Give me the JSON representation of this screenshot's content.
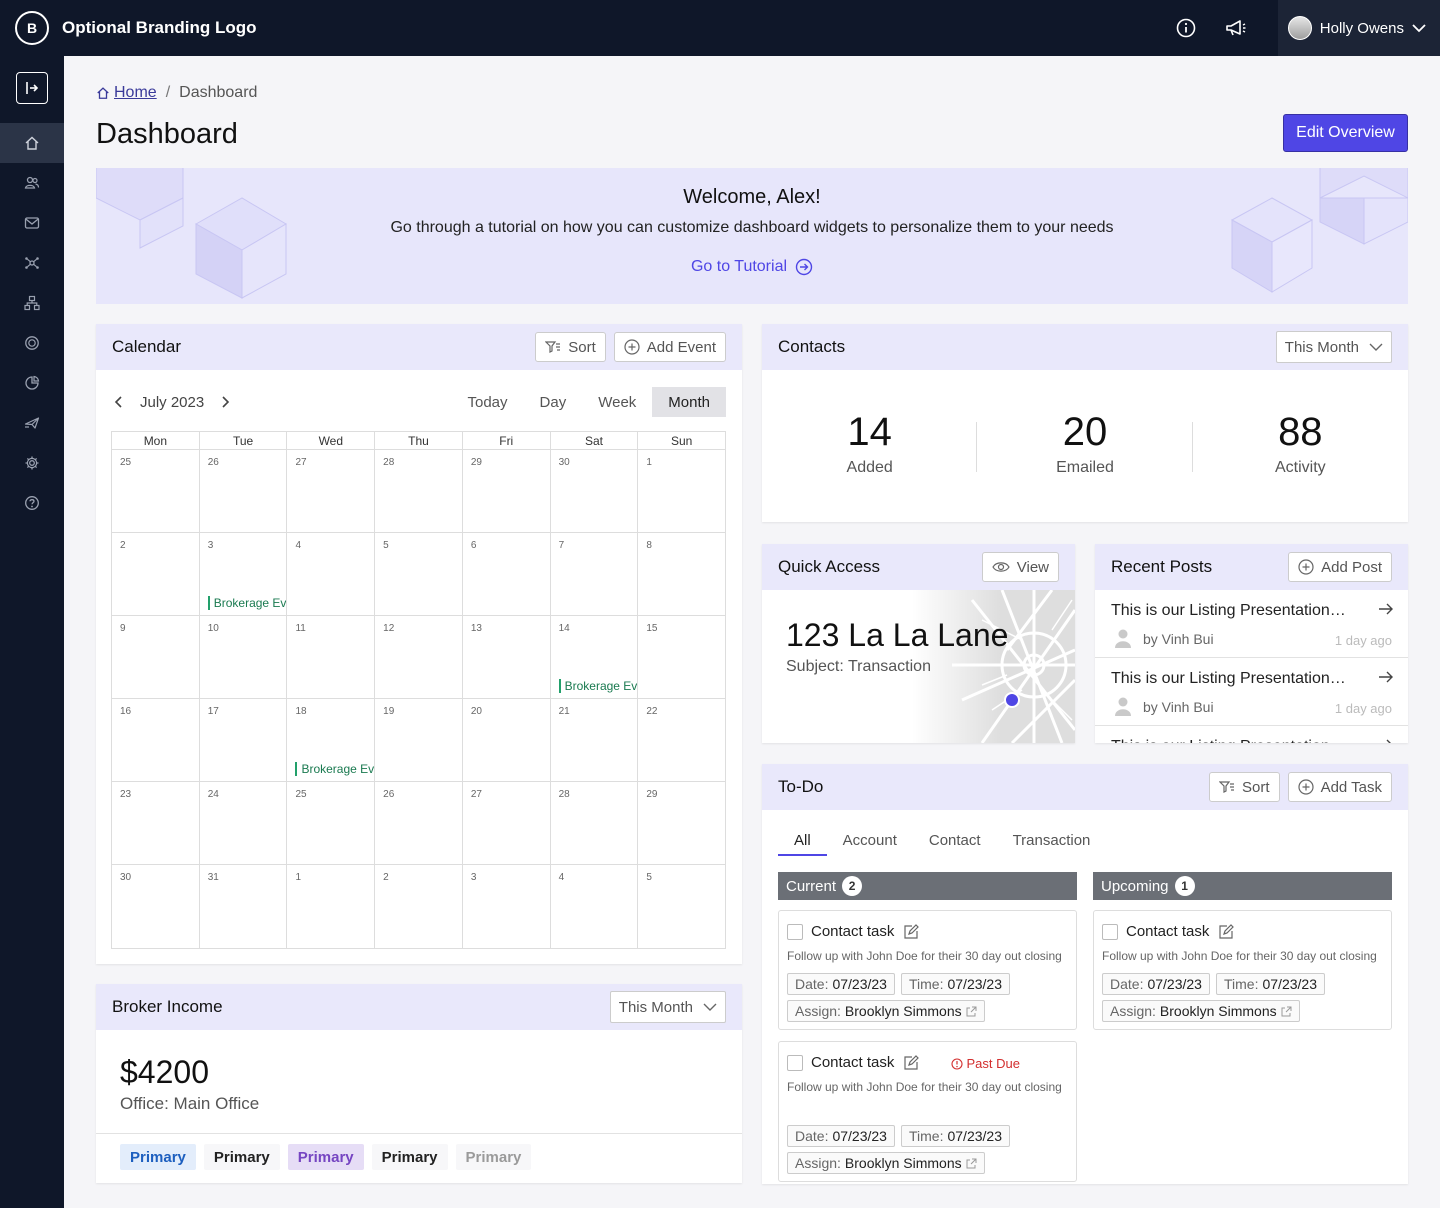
{
  "topbar": {
    "brand": "Optional Branding Logo",
    "brand_mark": "B",
    "user_name": "Holly Owens"
  },
  "breadcrumb": {
    "home": "Home",
    "separator": "/",
    "current": "Dashboard"
  },
  "page": {
    "title": "Dashboard",
    "edit_button": "Edit Overview"
  },
  "welcome": {
    "title": "Welcome, Alex!",
    "description": "Go through a tutorial on how you can customize dashboard widgets to personalize them to your needs",
    "link": "Go to Tutorial"
  },
  "calendar": {
    "title": "Calendar",
    "sort": "Sort",
    "add_event": "Add Event",
    "month": "July 2023",
    "views": [
      "Today",
      "Day",
      "Week",
      "Month"
    ],
    "active_view": "Month",
    "weekdays": [
      "Mon",
      "Tue",
      "Wed",
      "Thu",
      "Fri",
      "Sat",
      "Sun"
    ],
    "weeks": [
      [
        "25",
        "26",
        "27",
        "28",
        "29",
        "30",
        "1"
      ],
      [
        "2",
        "3",
        "4",
        "5",
        "6",
        "7",
        "8"
      ],
      [
        "9",
        "10",
        "11",
        "12",
        "13",
        "14",
        "15"
      ],
      [
        "16",
        "17",
        "18",
        "19",
        "20",
        "21",
        "22"
      ],
      [
        "23",
        "24",
        "25",
        "26",
        "27",
        "28",
        "29"
      ],
      [
        "30",
        "31",
        "1",
        "2",
        "3",
        "4",
        "5"
      ]
    ],
    "events": [
      {
        "week": 1,
        "day": 1,
        "label": "Brokerage Ev"
      },
      {
        "week": 2,
        "day": 5,
        "label": "Brokerage Ev"
      },
      {
        "week": 3,
        "day": 2,
        "label": "Brokerage Ev"
      }
    ]
  },
  "contacts": {
    "title": "Contacts",
    "filter": "This Month",
    "stats": [
      {
        "value": "14",
        "label": "Added"
      },
      {
        "value": "20",
        "label": "Emailed"
      },
      {
        "value": "88",
        "label": "Activity"
      }
    ]
  },
  "quick_access": {
    "title": "Quick Access",
    "view": "View",
    "address": "123 La La Lane",
    "subject": "Subject: Transaction"
  },
  "recent_posts": {
    "title": "Recent Posts",
    "add_post": "Add Post",
    "posts": [
      {
        "title": "This is our Listing Presentation…",
        "author": "by Vinh Bui",
        "time": "1 day ago"
      },
      {
        "title": "This is our Listing Presentation…",
        "author": "by Vinh Bui",
        "time": "1 day ago"
      },
      {
        "title": "This is our Listing Presentation…",
        "author": "",
        "time": ""
      }
    ]
  },
  "todo": {
    "title": "To-Do",
    "sort": "Sort",
    "add_task": "Add Task",
    "tabs": [
      "All",
      "Account",
      "Contact",
      "Transaction"
    ],
    "current": {
      "label": "Current",
      "count": "2"
    },
    "upcoming": {
      "label": "Upcoming",
      "count": "1"
    },
    "tasks": [
      {
        "title": "Contact task",
        "desc": "Follow up with John Doe for their 30 day out closing",
        "date_label": "Date:",
        "date": "07/23/23",
        "time_label": "Time:",
        "time": "07/23/23",
        "assign_label": "Assign:",
        "assign": "Brooklyn Simmons"
      },
      {
        "title": "Contact task",
        "desc": "Follow up with John Doe for their 30 day out closing",
        "date_label": "Date:",
        "date": "07/23/23",
        "time_label": "Time:",
        "time": "07/23/23",
        "assign_label": "Assign:",
        "assign": "Brooklyn Simmons",
        "status": "Past Due"
      },
      {
        "title": "Contact task",
        "desc": "Follow up with John Doe for their 30 day out closing",
        "date_label": "Date:",
        "date": "07/23/23",
        "time_label": "Time:",
        "time": "07/23/23",
        "assign_label": "Assign:",
        "assign": "Brooklyn Simmons"
      }
    ]
  },
  "broker_income": {
    "title": "Broker Income",
    "filter": "This Month",
    "amount": "$4200",
    "office": "Office: Main Office",
    "badges": [
      "Primary",
      "Primary",
      "Primary",
      "Primary",
      "Primary"
    ]
  },
  "colors": {
    "accent": "#4f46e5",
    "nav_bg": "#0f1729",
    "panel_head": "#e9e8fb",
    "event_green": "#22a06b",
    "past_due": "#d32f2f"
  }
}
